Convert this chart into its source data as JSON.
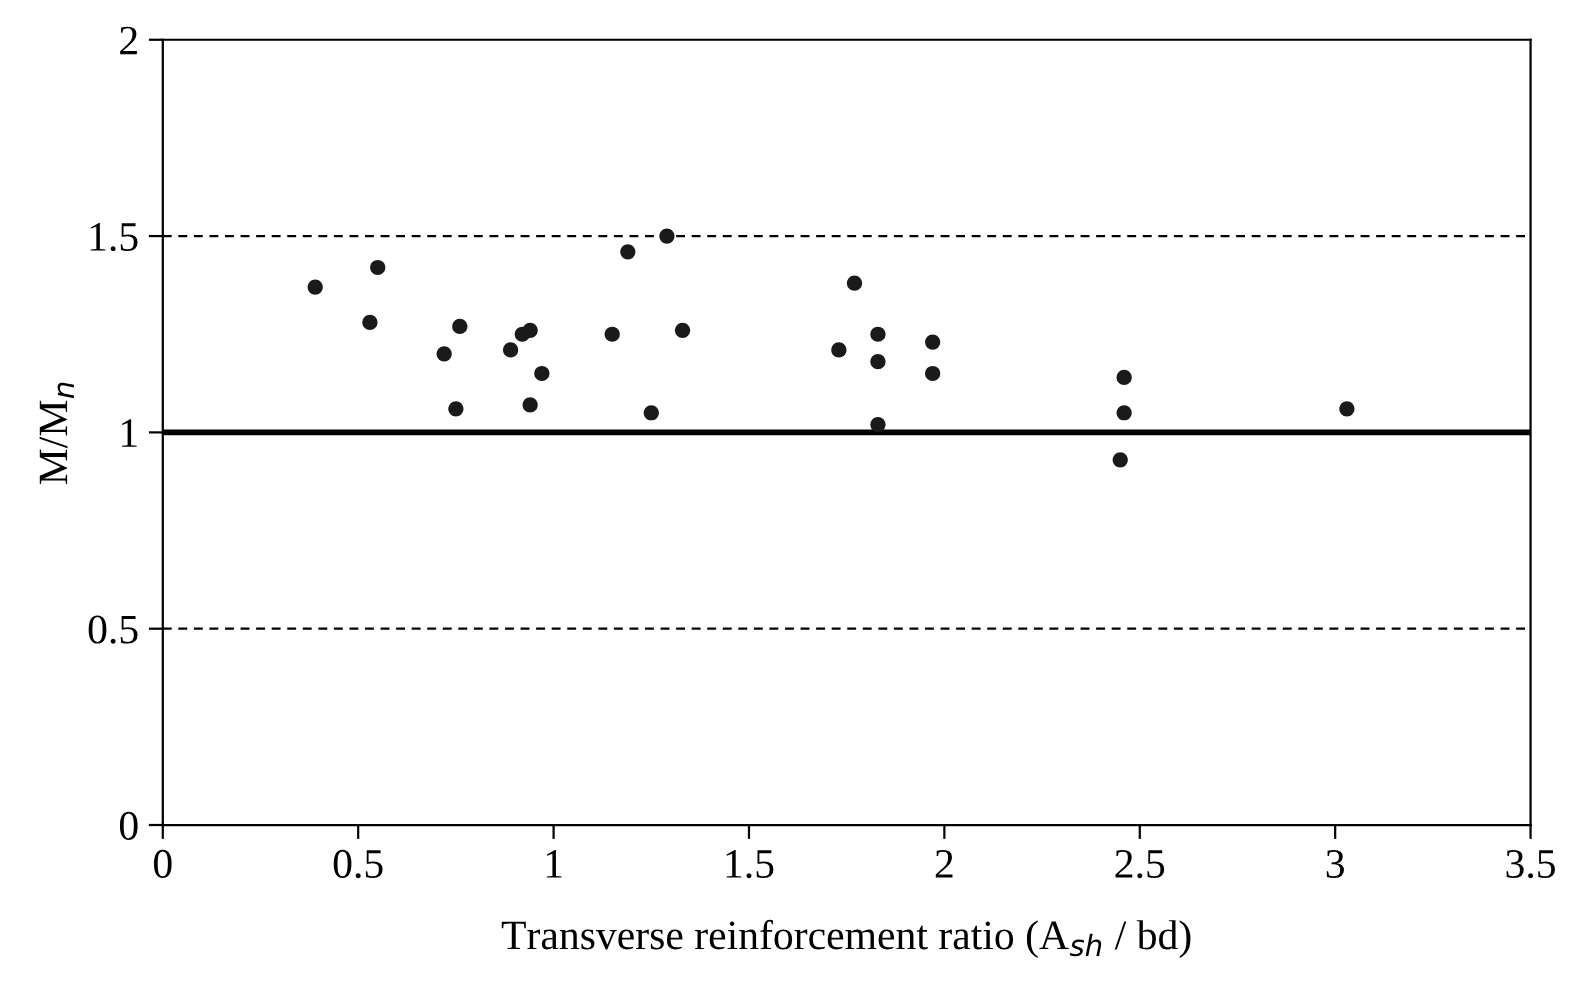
{
  "chart_data": {
    "type": "scatter",
    "xlabel": "Transverse reinforcement ratio (A$_{sh}$ / bd)",
    "ylabel": "M/M$_{n}$",
    "x": [
      0.39,
      0.55,
      0.53,
      0.76,
      0.72,
      0.75,
      0.89,
      0.92,
      0.94,
      0.97,
      0.94,
      1.15,
      1.19,
      1.29,
      1.33,
      1.25,
      1.77,
      1.73,
      1.83,
      1.83,
      1.83,
      1.97,
      1.97,
      2.46,
      2.46,
      2.45,
      3.03
    ],
    "values": [
      1.37,
      1.42,
      1.28,
      1.27,
      1.2,
      1.06,
      1.21,
      1.25,
      1.26,
      1.15,
      1.07,
      1.25,
      1.46,
      1.5,
      1.26,
      1.05,
      1.38,
      1.21,
      1.25,
      1.18,
      1.02,
      1.23,
      1.15,
      1.14,
      1.05,
      0.93,
      1.06
    ],
    "color": "#1a1a1a",
    "marker": "circle",
    "xlim": [
      0,
      3.5
    ],
    "xticks": [
      0,
      0.5,
      1,
      1.5,
      2,
      2.5,
      3,
      3.5
    ],
    "ylim": [
      0,
      2
    ],
    "yticks": [
      0,
      0.5,
      1,
      1.5,
      2
    ],
    "ref_lines": [
      {
        "axis": "y",
        "value": 1.5,
        "line_style": "dashed",
        "color": "#000000"
      },
      {
        "axis": "y",
        "value": 1,
        "line_style": "solid",
        "color": "#000000"
      },
      {
        "axis": "y",
        "value": 0.5,
        "line_style": "dashed",
        "color": "#000000"
      }
    ],
    "grid": false
  }
}
